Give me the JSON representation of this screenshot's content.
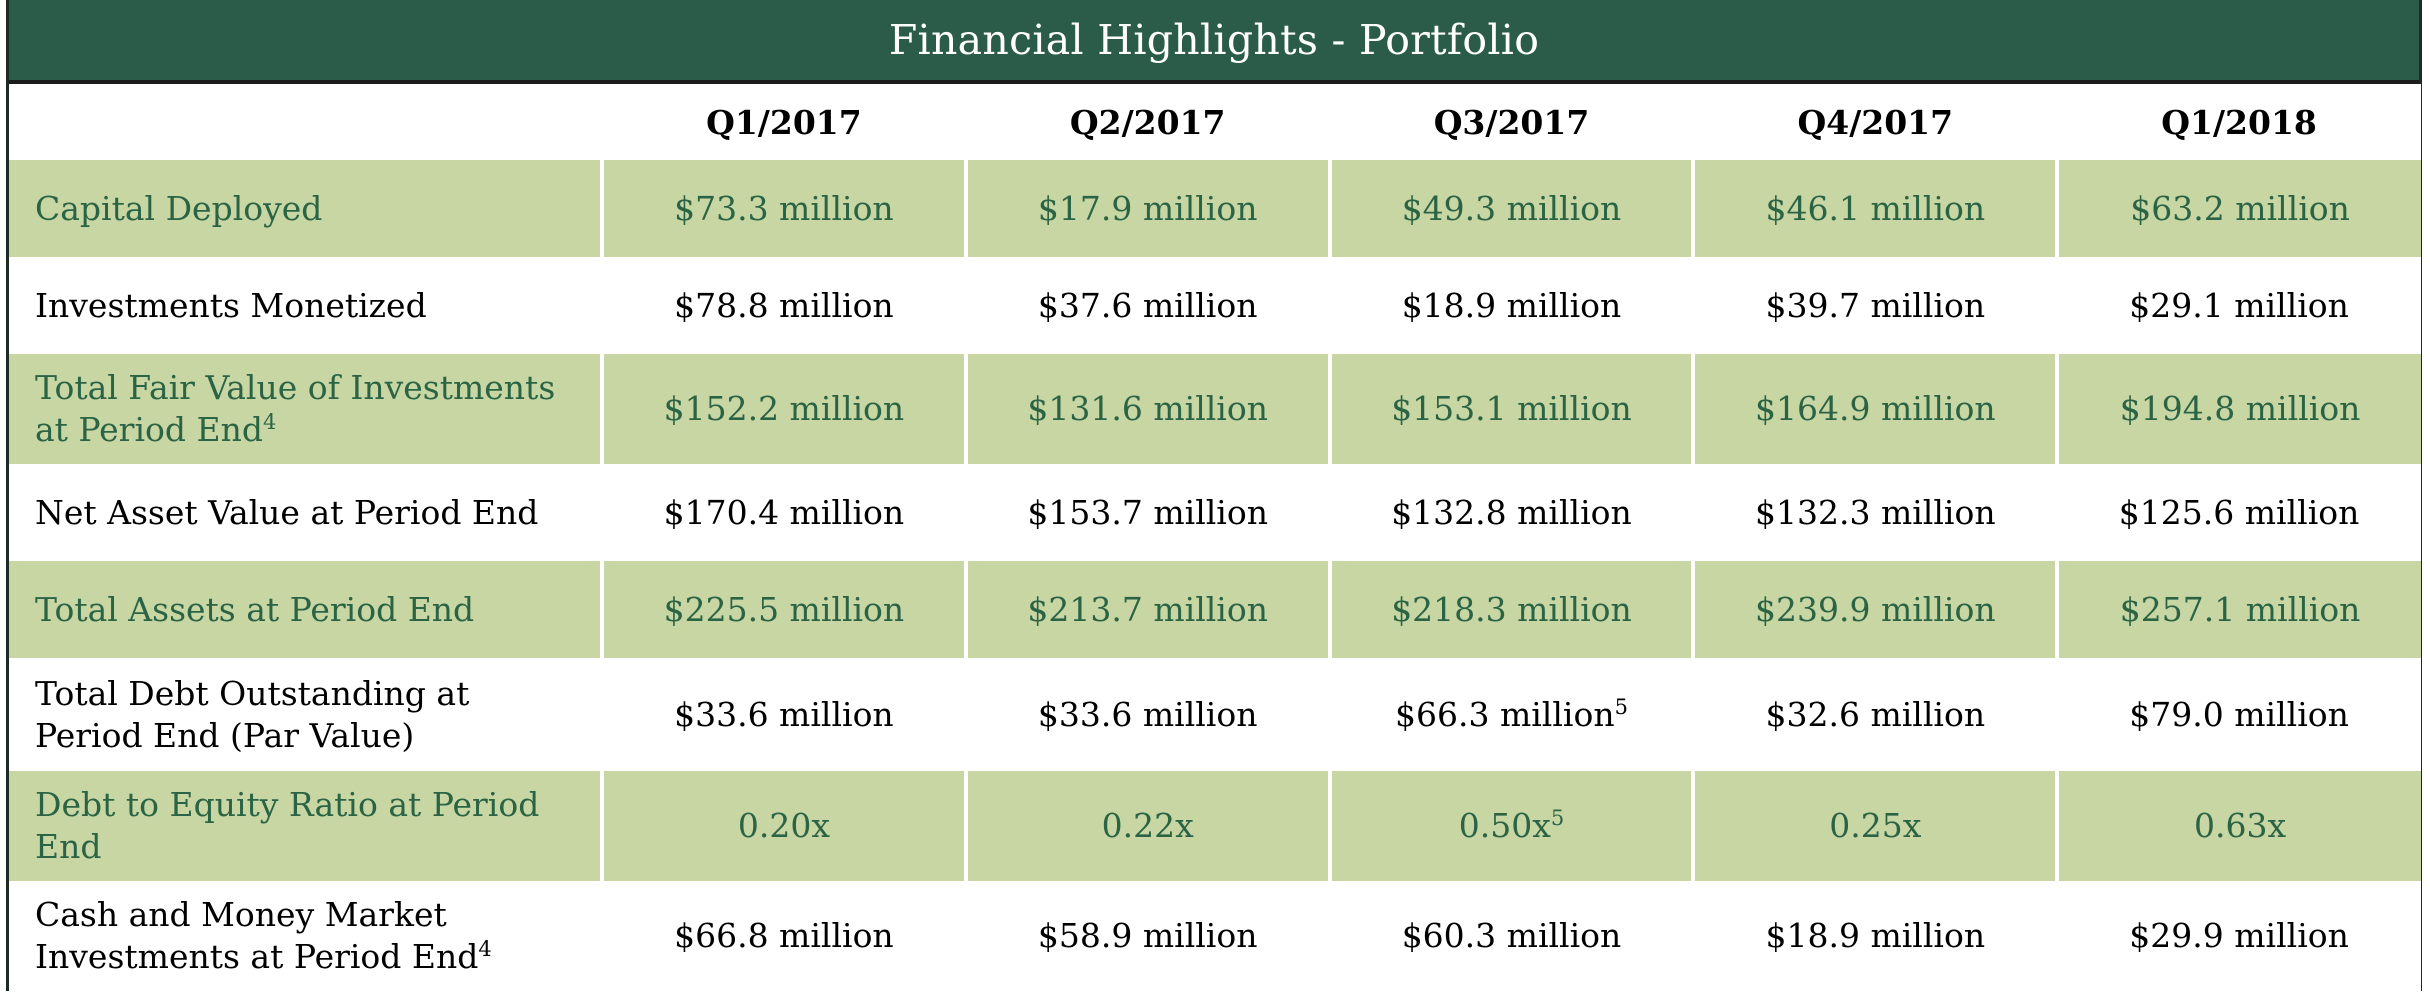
{
  "title": "Financial Highlights - Portfolio",
  "columns": [
    "",
    "Q1/2017",
    "Q2/2017",
    "Q3/2017",
    "Q4/2017",
    "Q1/2018"
  ],
  "rows": [
    {
      "label": "Capital Deployed",
      "label_sup": "",
      "values": [
        "$73.3 million",
        "$17.9 million",
        "$49.3 million",
        "$46.1 million",
        "$63.2 million"
      ],
      "value_sups": [
        "",
        "",
        "",
        "",
        ""
      ]
    },
    {
      "label": "Investments Monetized",
      "label_sup": "",
      "values": [
        "$78.8 million",
        "$37.6 million",
        "$18.9 million",
        "$39.7 million",
        "$29.1 million"
      ],
      "value_sups": [
        "",
        "",
        "",
        "",
        ""
      ]
    },
    {
      "label": "Total Fair Value of Investments at Period End",
      "label_sup": "4",
      "values": [
        "$152.2 million",
        "$131.6 million",
        "$153.1 million",
        "$164.9 million",
        "$194.8 million"
      ],
      "value_sups": [
        "",
        "",
        "",
        "",
        ""
      ]
    },
    {
      "label": "Net Asset Value at Period End",
      "label_sup": "",
      "values": [
        "$170.4 million",
        "$153.7 million",
        "$132.8 million",
        "$132.3 million",
        "$125.6 million"
      ],
      "value_sups": [
        "",
        "",
        "",
        "",
        ""
      ]
    },
    {
      "label": "Total Assets at Period End",
      "label_sup": "",
      "values": [
        "$225.5 million",
        "$213.7 million",
        "$218.3 million",
        "$239.9 million",
        "$257.1 million"
      ],
      "value_sups": [
        "",
        "",
        "",
        "",
        ""
      ]
    },
    {
      "label": "Total Debt Outstanding at Period End (Par Value)",
      "label_sup": "",
      "values": [
        "$33.6 million",
        "$33.6 million",
        "$66.3 million",
        "$32.6 million",
        "$79.0 million"
      ],
      "value_sups": [
        "",
        "",
        "5",
        "",
        ""
      ]
    },
    {
      "label": "Debt to Equity Ratio at Period End",
      "label_sup": "",
      "values": [
        "0.20x",
        "0.22x",
        "0.50x",
        "0.25x",
        "0.63x"
      ],
      "value_sups": [
        "",
        "",
        "5",
        "",
        ""
      ]
    },
    {
      "label": "Cash and Money Market Investments at Period End",
      "label_sup": "4",
      "values": [
        "$66.8 million",
        "$58.9 million",
        "$60.3 million",
        "$18.9 million",
        "$29.9 million"
      ],
      "value_sups": [
        "",
        "",
        "",
        "",
        ""
      ]
    }
  ],
  "colors": {
    "header_bg": "#2b5c4a",
    "shaded_row_bg": "#c7d6a3",
    "shaded_row_text": "#2b6445",
    "plain_row_text": "#000000"
  }
}
